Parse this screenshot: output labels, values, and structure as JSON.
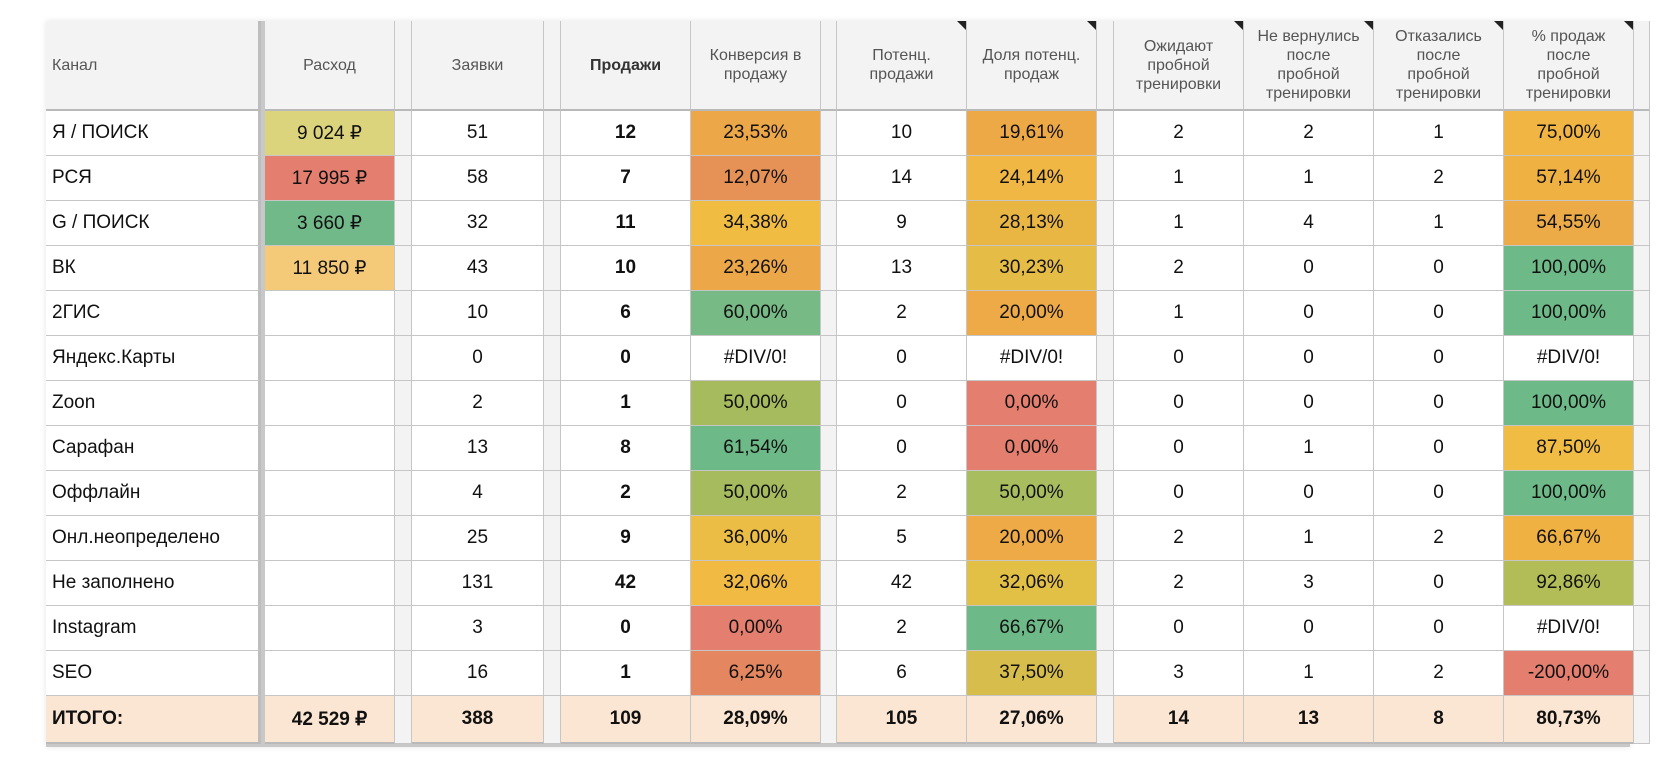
{
  "headers": [
    "Канал",
    "Расход",
    "Заявки",
    "Продажи",
    "Конверсия в\nпродажу",
    "Потенц.\nпродажи",
    "Доля потенц.\nпродаж",
    "Ожидают\nпробной\nтренировки",
    "Не вернулись\nпосле\nпробной\nтренировки",
    "Отказались\nпосле\nпробной\nтренировки",
    "% продаж\nпосле\nпробной\nтренировки"
  ],
  "rows": [
    {
      "cells": [
        "Я / ПОИСК",
        "9 024 ₽",
        "51",
        "12",
        "23,53%",
        "10",
        "19,61%",
        "2",
        "2",
        "1",
        "75,00%"
      ],
      "colors": {
        "1": "#dcd47c",
        "4": "#eba748",
        "6": "#eda946",
        "10": "#f1b543"
      }
    },
    {
      "cells": [
        "РСЯ",
        "17 995 ₽",
        "58",
        "7",
        "12,07%",
        "14",
        "24,14%",
        "1",
        "1",
        "2",
        "57,14%"
      ],
      "colors": {
        "1": "#e47f70",
        "4": "#e69156",
        "6": "#f0b744",
        "10": "#f0b143"
      }
    },
    {
      "cells": [
        "G / ПОИСК",
        "3 660 ₽",
        "32",
        "11",
        "34,38%",
        "9",
        "28,13%",
        "1",
        "4",
        "1",
        "54,55%"
      ],
      "colors": {
        "1": "#72b98a",
        "4": "#f0bd42",
        "6": "#e9b644",
        "10": "#ecab46"
      }
    },
    {
      "cells": [
        "ВК",
        "11 850 ₽",
        "43",
        "10",
        "23,26%",
        "13",
        "30,23%",
        "2",
        "0",
        "0",
        "100,00%"
      ],
      "colors": {
        "1": "#f4ca79",
        "4": "#eba748",
        "6": "#e5bc46",
        "10": "#6dba88"
      }
    },
    {
      "cells": [
        "2ГИС",
        "",
        "10",
        "6",
        "60,00%",
        "2",
        "20,00%",
        "1",
        "0",
        "0",
        "100,00%"
      ],
      "colors": {
        "4": "#78ba86",
        "6": "#edaa46",
        "10": "#6dba88"
      }
    },
    {
      "cells": [
        "Яндекс.Карты",
        "",
        "0",
        "0",
        "#DIV/0!",
        "0",
        "#DIV/0!",
        "0",
        "0",
        "0",
        "#DIV/0!"
      ],
      "colors": {}
    },
    {
      "cells": [
        "Zoon",
        "",
        "2",
        "1",
        "50,00%",
        "0",
        "0,00%",
        "0",
        "0",
        "0",
        "100,00%"
      ],
      "colors": {
        "4": "#a6bb5d",
        "6": "#e47f70",
        "10": "#6dba88"
      }
    },
    {
      "cells": [
        "Сарафан",
        "",
        "13",
        "8",
        "61,54%",
        "0",
        "0,00%",
        "0",
        "1",
        "0",
        "87,50%"
      ],
      "colors": {
        "4": "#6dba88",
        "6": "#e47f70",
        "10": "#f0bc43"
      }
    },
    {
      "cells": [
        "Оффлайн",
        "",
        "4",
        "2",
        "50,00%",
        "2",
        "50,00%",
        "0",
        "0",
        "0",
        "100,00%"
      ],
      "colors": {
        "4": "#a6bb5d",
        "6": "#a8bd5e",
        "10": "#6dba88"
      }
    },
    {
      "cells": [
        "Онл.неопределено",
        "",
        "25",
        "9",
        "36,00%",
        "5",
        "20,00%",
        "2",
        "1",
        "2",
        "66,67%"
      ],
      "colors": {
        "4": "#ebbd45",
        "6": "#edaa46",
        "10": "#f0b143"
      }
    },
    {
      "cells": [
        "Не заполнено",
        "",
        "131",
        "42",
        "32,06%",
        "42",
        "32,06%",
        "2",
        "3",
        "0",
        "92,86%"
      ],
      "colors": {
        "4": "#f0ba43",
        "6": "#e2bf45",
        "10": "#b2bd57"
      }
    },
    {
      "cells": [
        "Instagram",
        "",
        "3",
        "0",
        "0,00%",
        "2",
        "66,67%",
        "0",
        "0",
        "0",
        "#DIV/0!"
      ],
      "colors": {
        "4": "#e47f70",
        "6": "#6dba88"
      }
    },
    {
      "cells": [
        "SEO",
        "",
        "16",
        "1",
        "6,25%",
        "6",
        "37,50%",
        "3",
        "1",
        "2",
        "-200,00%"
      ],
      "colors": {
        "4": "#e4865f",
        "6": "#d7bd4b",
        "10": "#e47f70"
      }
    }
  ],
  "total": [
    "ИТОГО:",
    "42 529 ₽",
    "388",
    "109",
    "28,09%",
    "105",
    "27,06%",
    "14",
    "13",
    "8",
    "80,73%"
  ]
}
